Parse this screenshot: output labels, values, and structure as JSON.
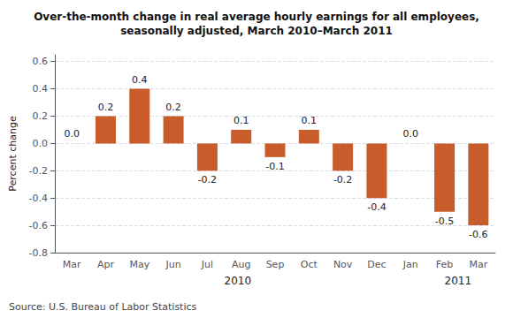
{
  "chart_data": {
    "type": "bar",
    "title": "Over-the-month change in real average hourly earnings for all employees,\nseasonally adjusted, March 2010–March 2011",
    "ylabel": "Percent change",
    "source": "Source: U.S. Bureau of Labor Statistics",
    "categories": [
      "Mar",
      "Apr",
      "May",
      "Jun",
      "Jul",
      "Aug",
      "Sep",
      "Oct",
      "Nov",
      "Dec",
      "Jan",
      "Feb",
      "Mar"
    ],
    "values": [
      0.0,
      0.2,
      0.4,
      0.2,
      -0.2,
      0.1,
      -0.1,
      0.1,
      -0.2,
      -0.4,
      0.0,
      -0.5,
      -0.6
    ],
    "value_labels": [
      "0.0",
      "0.2",
      "0.4",
      "0.2",
      "-0.2",
      "0.1",
      "-0.1",
      "0.1",
      "-0.2",
      "-0.4",
      "0.0",
      "-0.5",
      "-0.6"
    ],
    "annotations": [
      {
        "text": "2010",
        "x": 4.5
      },
      {
        "text": "2011",
        "x": 11.0
      }
    ],
    "color": "#C85C2A",
    "ylim": [
      -0.8,
      0.65
    ],
    "yticks": [
      -0.8,
      -0.6,
      -0.4,
      -0.2,
      {
        "value": 0.0,
        "label": "0.0"
      },
      0.2,
      0.4,
      0.6
    ],
    "grid": true,
    "data_labels": true
  }
}
